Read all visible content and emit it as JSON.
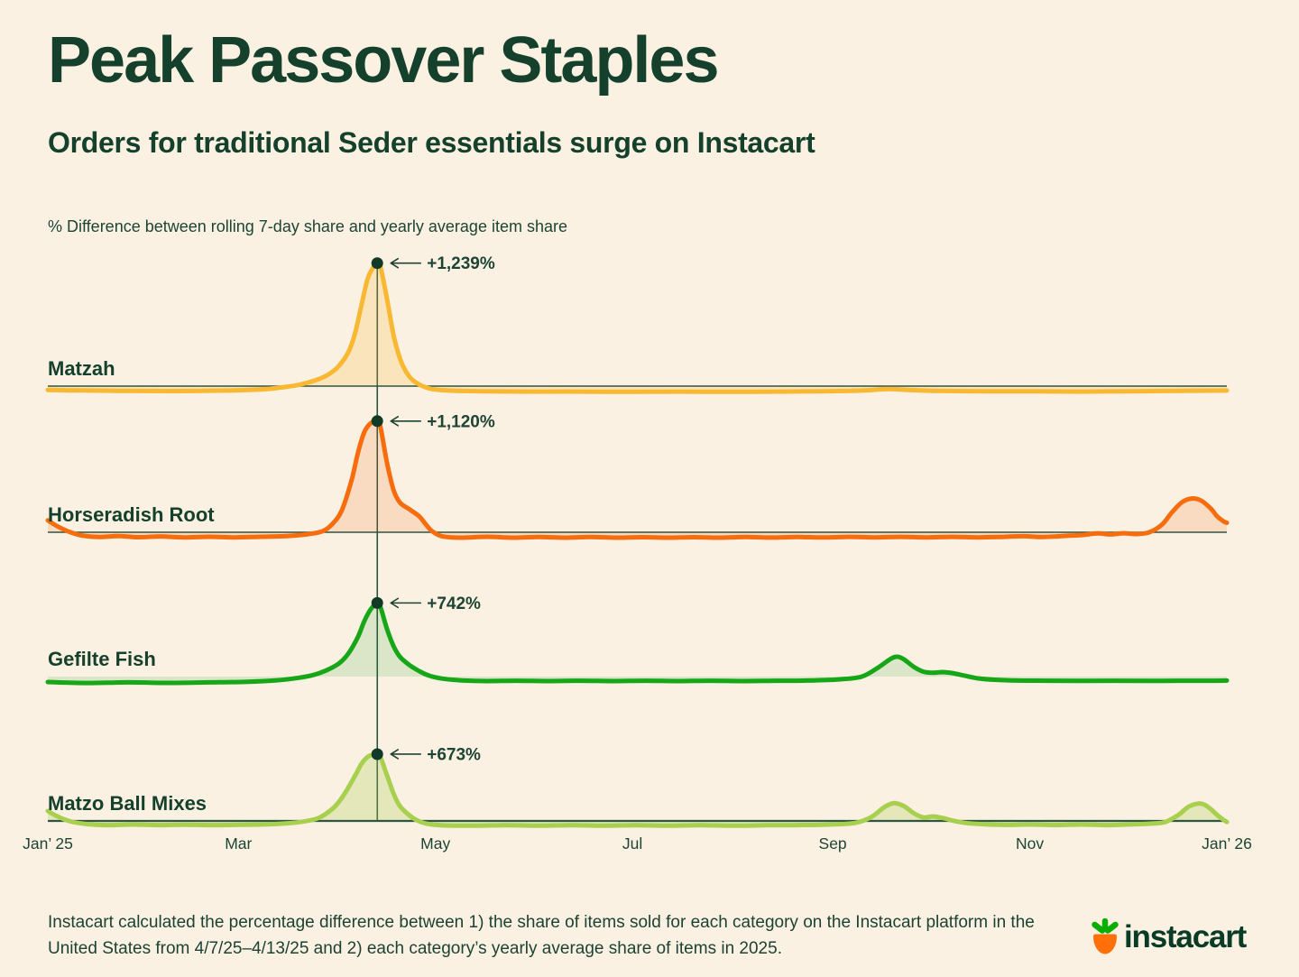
{
  "header": {
    "title": "Peak Passover Staples",
    "subtitle": "Orders for traditional Seder essentials surge on Instacart"
  },
  "chart_data": {
    "type": "area",
    "title": "Peak Passover Staples",
    "subtitle": "Orders for traditional Seder essentials surge on Instacart",
    "ylabel": "% Difference between rolling 7-day share and yearly average item share",
    "legend": "none",
    "grid": false,
    "x_axis": {
      "unit": "day of year (2025)",
      "range_days": [
        0,
        365
      ],
      "ticks": [
        {
          "label": "Jan’ 25",
          "day": 0
        },
        {
          "label": "Mar",
          "day": 59
        },
        {
          "label": "May",
          "day": 120
        },
        {
          "label": "Jul",
          "day": 181
        },
        {
          "label": "Sep",
          "day": 243
        },
        {
          "label": "Nov",
          "day": 304
        },
        {
          "label": "Jan’ 26",
          "day": 365
        }
      ]
    },
    "peak_event": {
      "day": 102
    },
    "series": [
      {
        "label": "Matzah",
        "color": "#F9B832",
        "fill_color": "rgba(249,184,50,0.22)",
        "peak_label": "+1,239%",
        "peak_value": 1239,
        "peak_day": 102,
        "points": [
          [
            0,
            -38
          ],
          [
            10,
            -44
          ],
          [
            25,
            -48
          ],
          [
            40,
            -50
          ],
          [
            55,
            -45
          ],
          [
            65,
            -35
          ],
          [
            72,
            -15
          ],
          [
            78,
            15
          ],
          [
            83,
            60
          ],
          [
            87,
            120
          ],
          [
            90,
            200
          ],
          [
            93,
            340
          ],
          [
            95,
            520
          ],
          [
            97,
            800
          ],
          [
            99,
            1080
          ],
          [
            101,
            1210
          ],
          [
            102,
            1239
          ],
          [
            103,
            1200
          ],
          [
            105,
            880
          ],
          [
            107,
            520
          ],
          [
            109,
            280
          ],
          [
            111,
            140
          ],
          [
            113,
            60
          ],
          [
            116,
            0
          ],
          [
            119,
            -30
          ],
          [
            124,
            -45
          ],
          [
            135,
            -52
          ],
          [
            150,
            -55
          ],
          [
            165,
            -55
          ],
          [
            180,
            -57
          ],
          [
            195,
            -55
          ],
          [
            210,
            -57
          ],
          [
            225,
            -55
          ],
          [
            240,
            -52
          ],
          [
            252,
            -45
          ],
          [
            260,
            -30
          ],
          [
            266,
            -38
          ],
          [
            275,
            -48
          ],
          [
            290,
            -52
          ],
          [
            305,
            -53
          ],
          [
            320,
            -55
          ],
          [
            335,
            -52
          ],
          [
            350,
            -48
          ],
          [
            365,
            -45
          ]
        ]
      },
      {
        "label": "Horseradish Root",
        "color": "#F76C0C",
        "fill_color": "rgba(247,108,18,0.16)",
        "peak_label": "+1,120%",
        "peak_value": 1120,
        "peak_day": 102,
        "points": [
          [
            0,
            120
          ],
          [
            3,
            60
          ],
          [
            7,
            0
          ],
          [
            11,
            -35
          ],
          [
            16,
            -48
          ],
          [
            22,
            -38
          ],
          [
            28,
            -50
          ],
          [
            35,
            -42
          ],
          [
            42,
            -52
          ],
          [
            50,
            -45
          ],
          [
            58,
            -52
          ],
          [
            66,
            -45
          ],
          [
            74,
            -38
          ],
          [
            80,
            -22
          ],
          [
            85,
            10
          ],
          [
            88,
            80
          ],
          [
            91,
            220
          ],
          [
            94,
            520
          ],
          [
            96,
            800
          ],
          [
            98,
            1010
          ],
          [
            100,
            1100
          ],
          [
            102,
            1120
          ],
          [
            103,
            1060
          ],
          [
            105,
            700
          ],
          [
            107,
            430
          ],
          [
            109,
            300
          ],
          [
            112,
            230
          ],
          [
            115,
            160
          ],
          [
            117,
            80
          ],
          [
            119,
            10
          ],
          [
            122,
            -40
          ],
          [
            128,
            -55
          ],
          [
            136,
            -45
          ],
          [
            144,
            -55
          ],
          [
            152,
            -48
          ],
          [
            160,
            -55
          ],
          [
            168,
            -48
          ],
          [
            176,
            -55
          ],
          [
            184,
            -50
          ],
          [
            192,
            -55
          ],
          [
            200,
            -50
          ],
          [
            208,
            -55
          ],
          [
            216,
            -48
          ],
          [
            224,
            -54
          ],
          [
            232,
            -48
          ],
          [
            240,
            -53
          ],
          [
            248,
            -46
          ],
          [
            256,
            -52
          ],
          [
            264,
            -46
          ],
          [
            272,
            -52
          ],
          [
            280,
            -46
          ],
          [
            288,
            -52
          ],
          [
            296,
            -46
          ],
          [
            302,
            -40
          ],
          [
            308,
            -48
          ],
          [
            314,
            -38
          ],
          [
            320,
            -28
          ],
          [
            325,
            -12
          ],
          [
            329,
            -22
          ],
          [
            333,
            -10
          ],
          [
            337,
            -18
          ],
          [
            341,
            0
          ],
          [
            345,
            80
          ],
          [
            348,
            200
          ],
          [
            351,
            300
          ],
          [
            354,
            340
          ],
          [
            357,
            320
          ],
          [
            360,
            240
          ],
          [
            362,
            160
          ],
          [
            364,
            110
          ],
          [
            365,
            95
          ]
        ]
      },
      {
        "label": "Gefilte Fish",
        "color": "#17A617",
        "fill_color": "rgba(30,160,30,0.14)",
        "peak_label": "+742%",
        "peak_value": 742,
        "peak_day": 102,
        "points": [
          [
            0,
            -55
          ],
          [
            12,
            -65
          ],
          [
            25,
            -58
          ],
          [
            38,
            -64
          ],
          [
            50,
            -58
          ],
          [
            62,
            -52
          ],
          [
            70,
            -40
          ],
          [
            76,
            -20
          ],
          [
            82,
            15
          ],
          [
            86,
            60
          ],
          [
            90,
            130
          ],
          [
            93,
            230
          ],
          [
            96,
            400
          ],
          [
            98,
            560
          ],
          [
            100,
            680
          ],
          [
            102,
            742
          ],
          [
            103,
            700
          ],
          [
            105,
            480
          ],
          [
            107,
            310
          ],
          [
            109,
            200
          ],
          [
            112,
            115
          ],
          [
            115,
            55
          ],
          [
            118,
            10
          ],
          [
            122,
            -20
          ],
          [
            128,
            -38
          ],
          [
            136,
            -45
          ],
          [
            145,
            -42
          ],
          [
            155,
            -45
          ],
          [
            165,
            -42
          ],
          [
            175,
            -45
          ],
          [
            185,
            -42
          ],
          [
            195,
            -45
          ],
          [
            205,
            -42
          ],
          [
            215,
            -45
          ],
          [
            225,
            -42
          ],
          [
            235,
            -40
          ],
          [
            245,
            -28
          ],
          [
            252,
            0
          ],
          [
            257,
            90
          ],
          [
            261,
            180
          ],
          [
            263,
            200
          ],
          [
            265,
            175
          ],
          [
            268,
            100
          ],
          [
            271,
            50
          ],
          [
            274,
            38
          ],
          [
            277,
            45
          ],
          [
            280,
            35
          ],
          [
            284,
            8
          ],
          [
            288,
            -18
          ],
          [
            293,
            -32
          ],
          [
            300,
            -40
          ],
          [
            310,
            -42
          ],
          [
            320,
            -44
          ],
          [
            330,
            -42
          ],
          [
            340,
            -44
          ],
          [
            350,
            -42
          ],
          [
            360,
            -42
          ],
          [
            365,
            -40
          ]
        ]
      },
      {
        "label": "Matzo Ball Mixes",
        "color": "#A9CF4F",
        "fill_color": "rgba(168,206,78,0.28)",
        "peak_label": "+673%",
        "peak_value": 673,
        "peak_day": 102,
        "points": [
          [
            0,
            100
          ],
          [
            3,
            45
          ],
          [
            7,
            -5
          ],
          [
            12,
            -32
          ],
          [
            18,
            -42
          ],
          [
            26,
            -36
          ],
          [
            34,
            -42
          ],
          [
            42,
            -38
          ],
          [
            50,
            -42
          ],
          [
            58,
            -40
          ],
          [
            66,
            -36
          ],
          [
            72,
            -28
          ],
          [
            78,
            -12
          ],
          [
            83,
            20
          ],
          [
            86,
            70
          ],
          [
            89,
            150
          ],
          [
            92,
            280
          ],
          [
            95,
            450
          ],
          [
            97,
            570
          ],
          [
            99,
            645
          ],
          [
            101,
            670
          ],
          [
            102,
            673
          ],
          [
            103,
            640
          ],
          [
            105,
            460
          ],
          [
            107,
            280
          ],
          [
            109,
            150
          ],
          [
            112,
            55
          ],
          [
            115,
            -5
          ],
          [
            118,
            -32
          ],
          [
            123,
            -45
          ],
          [
            132,
            -48
          ],
          [
            142,
            -44
          ],
          [
            152,
            -48
          ],
          [
            162,
            -44
          ],
          [
            172,
            -48
          ],
          [
            182,
            -44
          ],
          [
            192,
            -48
          ],
          [
            202,
            -44
          ],
          [
            212,
            -48
          ],
          [
            222,
            -44
          ],
          [
            232,
            -42
          ],
          [
            242,
            -36
          ],
          [
            250,
            -20
          ],
          [
            255,
            40
          ],
          [
            259,
            140
          ],
          [
            262,
            180
          ],
          [
            265,
            150
          ],
          [
            268,
            80
          ],
          [
            271,
            35
          ],
          [
            274,
            45
          ],
          [
            277,
            30
          ],
          [
            280,
            5
          ],
          [
            284,
            -20
          ],
          [
            289,
            -32
          ],
          [
            296,
            -40
          ],
          [
            304,
            -36
          ],
          [
            312,
            -42
          ],
          [
            320,
            -36
          ],
          [
            328,
            -42
          ],
          [
            336,
            -34
          ],
          [
            342,
            -26
          ],
          [
            346,
            -10
          ],
          [
            350,
            60
          ],
          [
            353,
            140
          ],
          [
            356,
            175
          ],
          [
            358,
            165
          ],
          [
            360,
            120
          ],
          [
            362,
            60
          ],
          [
            364,
            10
          ],
          [
            365,
            -10
          ]
        ]
      }
    ]
  },
  "footer": {
    "note": "Instacart calculated the percentage difference between 1) the share of items sold for each category on the Instacart platform in the United States from 4/7/25–4/13/25 and 2) each category’s yearly average share of items in 2025.",
    "brand": "instacart"
  },
  "colors": {
    "background": "#FAF1E3",
    "ink": "#14402C",
    "grid_line": "#2E5442",
    "peak_dot": "#113A28",
    "logo_leaf_green": "#0AAD02",
    "logo_carrot_orange": "#FF7009"
  }
}
